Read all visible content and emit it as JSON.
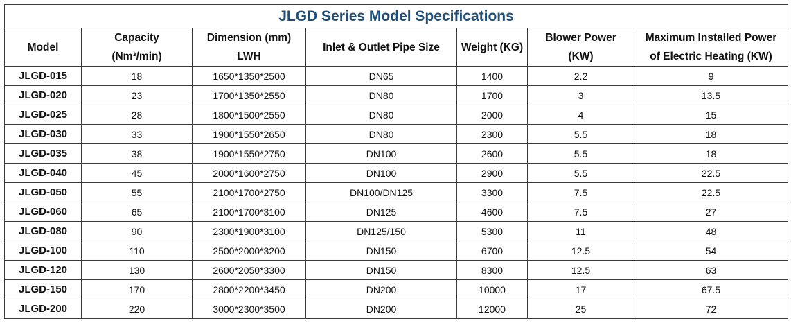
{
  "title": "JLGD Series Model Specifications",
  "headers": [
    {
      "line1": "Model",
      "line2": ""
    },
    {
      "line1": "Capacity",
      "line2": "(Nm³/min)"
    },
    {
      "line1": "Dimension (mm)",
      "line2": "LWH"
    },
    {
      "line1": "Inlet & Outlet Pipe Size",
      "line2": ""
    },
    {
      "line1": "Weight (KG)",
      "line2": ""
    },
    {
      "line1": "Blower Power",
      "line2": "(KW)"
    },
    {
      "line1": "Maximum Installed Power",
      "line2": "of Electric Heating (KW)"
    }
  ],
  "rows": [
    [
      "JLGD-015",
      "18",
      "1650*1350*2500",
      "DN65",
      "1400",
      "2.2",
      "9"
    ],
    [
      "JLGD-020",
      "23",
      "1700*1350*2550",
      "DN80",
      "1700",
      "3",
      "13.5"
    ],
    [
      "JLGD-025",
      "28",
      "1800*1500*2550",
      "DN80",
      "2000",
      "4",
      "15"
    ],
    [
      "JLGD-030",
      "33",
      "1900*1550*2650",
      "DN80",
      "2300",
      "5.5",
      "18"
    ],
    [
      "JLGD-035",
      "38",
      "1900*1550*2750",
      "DN100",
      "2600",
      "5.5",
      "18"
    ],
    [
      "JLGD-040",
      "45",
      "2000*1600*2750",
      "DN100",
      "2900",
      "5.5",
      "22.5"
    ],
    [
      "JLGD-050",
      "55",
      "2100*1700*2750",
      "DN100/DN125",
      "3300",
      "7.5",
      "22.5"
    ],
    [
      "JLGD-060",
      "65",
      "2100*1700*3100",
      "DN125",
      "4600",
      "7.5",
      "27"
    ],
    [
      "JLGD-080",
      "90",
      "2300*1900*3100",
      "DN125/150",
      "5300",
      "11",
      "48"
    ],
    [
      "JLGD-100",
      "110",
      "2500*2000*3200",
      "DN150",
      "6700",
      "12.5",
      "54"
    ],
    [
      "JLGD-120",
      "130",
      "2600*2050*3300",
      "DN150",
      "8300",
      "12.5",
      "63"
    ],
    [
      "JLGD-150",
      "170",
      "2800*2200*3450",
      "DN200",
      "10000",
      "17",
      "67.5"
    ],
    [
      "JLGD-200",
      "220",
      "3000*2300*3500",
      "DN200",
      "12000",
      "25",
      "72"
    ]
  ]
}
